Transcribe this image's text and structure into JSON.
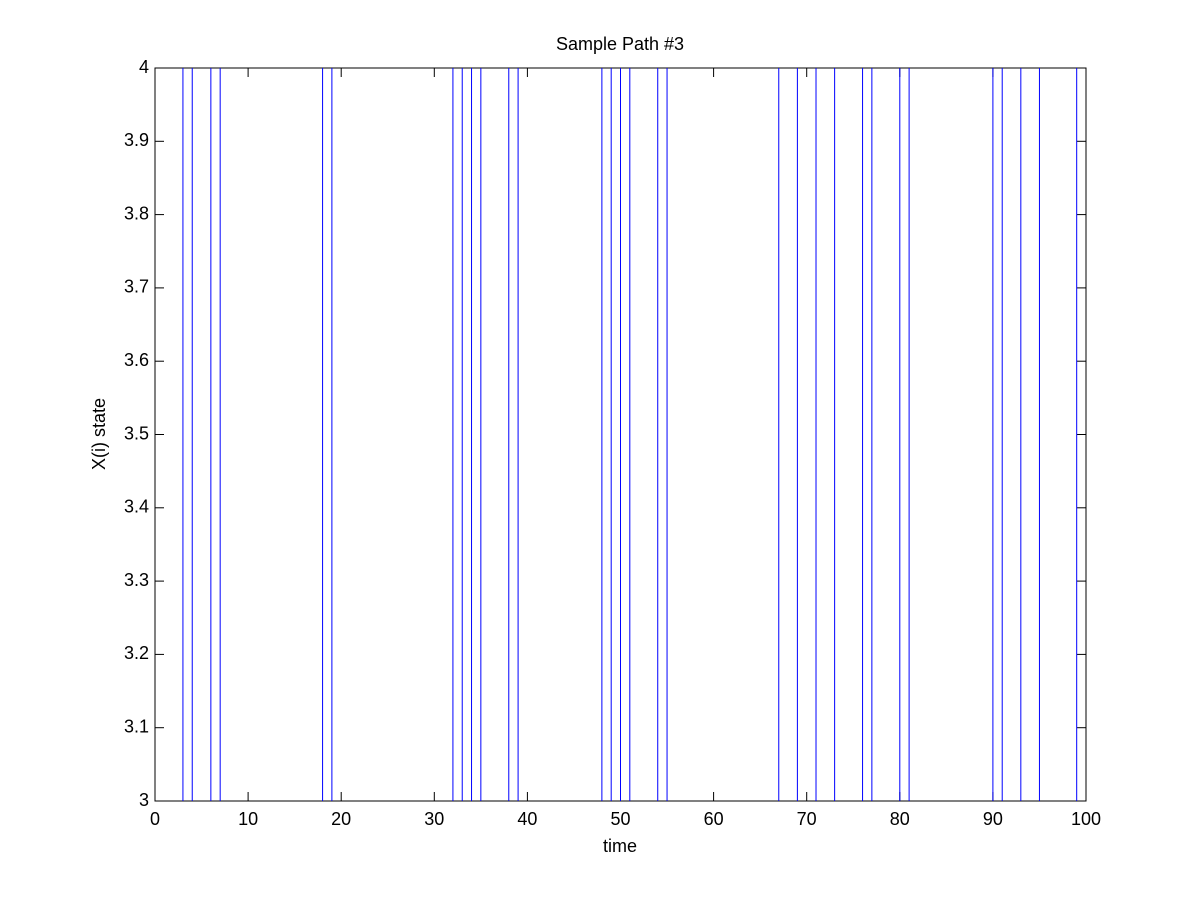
{
  "chart_data": {
    "type": "vlines",
    "title": "Sample Path #3",
    "x_label": "time",
    "y_label": "X(i) state",
    "x": [
      3,
      4,
      6,
      7,
      18,
      19,
      32,
      33,
      34,
      35,
      38,
      39,
      48,
      49,
      50,
      51,
      54,
      55,
      67,
      69,
      71,
      73,
      76,
      77,
      80,
      81,
      90,
      91,
      93,
      95,
      99
    ],
    "color": "#0000ff",
    "xlim": [
      0,
      100
    ],
    "xticks": [
      0,
      10,
      20,
      30,
      40,
      50,
      60,
      70,
      80,
      90,
      100
    ],
    "ylim": [
      3,
      4
    ],
    "yticks": [
      3,
      3.1,
      3.2,
      3.3,
      3.4,
      3.5,
      3.6,
      3.7,
      3.8,
      3.9,
      4
    ]
  }
}
